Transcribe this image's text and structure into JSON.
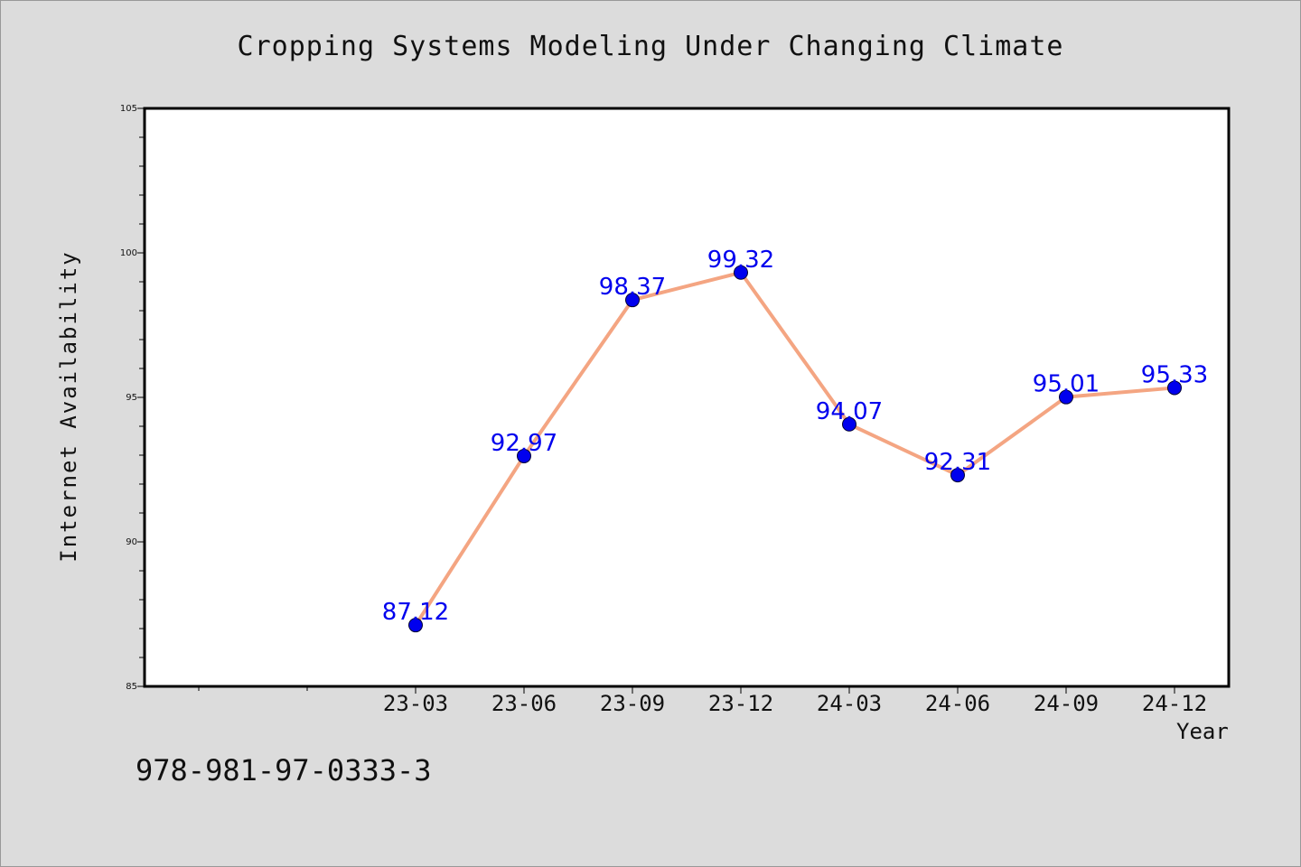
{
  "page": {
    "title": "Cropping Systems Modeling Under Changing Climate",
    "footer_code": "978-981-97-0333-3"
  },
  "chart_data": {
    "type": "line",
    "title": "Cropping Systems Modeling Under Changing Climate",
    "xlabel": "Year",
    "ylabel": "Internet Availability",
    "categories": [
      "23-03",
      "23-06",
      "23-09",
      "23-12",
      "24-03",
      "24-06",
      "24-09",
      "24-12"
    ],
    "series": [
      {
        "values": [
          87.12,
          92.97,
          98.37,
          99.32,
          94.07,
          92.31,
          95.01,
          95.33
        ],
        "data_labels": [
          "87.12",
          "92.97",
          "98.37",
          "99.32",
          "94.07",
          "92.31",
          "95.01",
          "95.33"
        ]
      }
    ],
    "ylim": [
      85,
      105
    ],
    "y_ticks": [
      "85",
      "90",
      "95",
      "100",
      "105"
    ],
    "x_leading_empty_slots": 2,
    "grid": false,
    "legend": "none",
    "colors": {
      "line": "#f4a582",
      "marker": "#0000ee",
      "label": "#0000ee",
      "axis": "#000000",
      "plot_bg": "#ffffff",
      "page_bg": "#dcdcdc"
    }
  }
}
